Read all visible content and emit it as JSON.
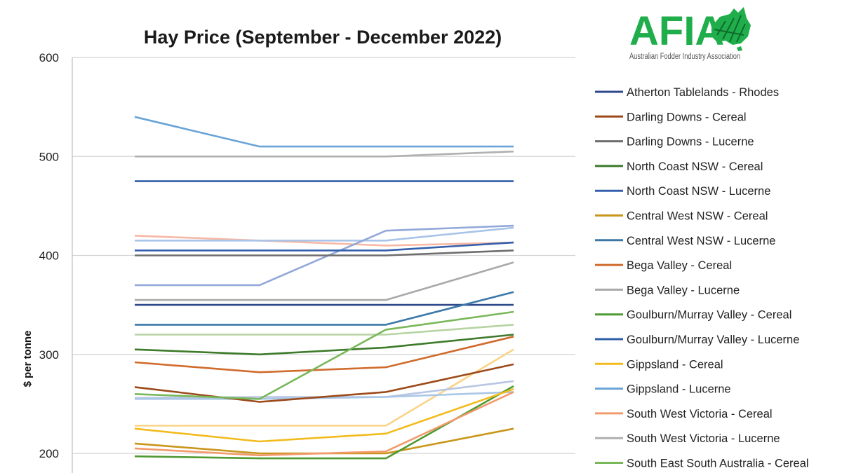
{
  "logo": {
    "word": "AFIA",
    "subtitle": "Australian Fodder Industry Association",
    "color": "#1fae4b"
  },
  "chart_data": {
    "type": "line",
    "title": "Hay Price (September - December 2022)",
    "ylabel": "$ per tonne",
    "xlabel": "",
    "ylim": [
      200,
      600
    ],
    "yticks": [
      200,
      300,
      400,
      500,
      600
    ],
    "grid": true,
    "legend_position": "right",
    "x": [
      1,
      2,
      3,
      4
    ],
    "series": [
      {
        "name": "Atherton Tablelands - Rhodes",
        "color": "#2e4a8c",
        "values": [
          350,
          350,
          350,
          350
        ]
      },
      {
        "name": "Darling Downs - Cereal",
        "color": "#9c4a1a",
        "values": [
          267,
          252,
          262,
          290
        ]
      },
      {
        "name": "Darling Downs - Lucerne",
        "color": "#6e6e6e",
        "values": [
          400,
          400,
          400,
          405
        ]
      },
      {
        "name": "North Coast NSW - Cereal",
        "color": "#3d7a2a",
        "values": [
          305,
          300,
          307,
          320
        ]
      },
      {
        "name": "North Coast NSW - Lucerne",
        "color": "#3560ad",
        "values": [
          405,
          405,
          405,
          413
        ]
      },
      {
        "name": "Central West NSW - Cereal",
        "color": "#c9961a",
        "values": [
          210,
          200,
          200,
          225
        ]
      },
      {
        "name": "Central West NSW - Lucerne",
        "color": "#3b78a8",
        "values": [
          330,
          330,
          330,
          363
        ]
      },
      {
        "name": "Bega Valley - Cereal",
        "color": "#d06b2c",
        "values": [
          292,
          282,
          287,
          318
        ]
      },
      {
        "name": "Bega Valley - Lucerne",
        "color": "#a9a9a9",
        "values": [
          355,
          355,
          355,
          393
        ]
      },
      {
        "name": "Goulburn/Murray Valley - Cereal",
        "color": "#4f9a33",
        "values": [
          197,
          195,
          195,
          268
        ]
      },
      {
        "name": "Goulburn/Murray Valley - Lucerne",
        "color": "#2f5fa8",
        "values": [
          475,
          475,
          475,
          475
        ]
      },
      {
        "name": "Gippsland - Cereal",
        "color": "#f2bb1d",
        "values": [
          225,
          212,
          220,
          265
        ]
      },
      {
        "name": "Gippsland - Lucerne",
        "color": "#6aa3d6",
        "values": [
          540,
          510,
          510,
          510
        ]
      },
      {
        "name": "South West Victoria - Cereal",
        "color": "#f29a6c",
        "values": [
          205,
          198,
          202,
          262
        ]
      },
      {
        "name": "South West Victoria - Lucerne",
        "color": "#b0b0b0",
        "values": [
          500,
          500,
          500,
          505
        ]
      },
      {
        "name": "South East South Australia - Cereal",
        "color": "#79b85a",
        "values": [
          260,
          255,
          325,
          343
        ]
      }
    ],
    "extra_lines": [
      {
        "color": "#f7b9a5",
        "values": [
          420,
          415,
          410,
          413
        ]
      },
      {
        "color": "#a9c4e8",
        "values": [
          415,
          415,
          415,
          428
        ]
      },
      {
        "color": "#92a8d8",
        "values": [
          370,
          370,
          425,
          430
        ]
      },
      {
        "color": "#b6d4a3",
        "values": [
          320,
          320,
          320,
          330
        ]
      },
      {
        "color": "#fad387",
        "values": [
          228,
          228,
          228,
          305
        ]
      },
      {
        "color": "#b9c5e3",
        "values": [
          256,
          257,
          257,
          273
        ]
      },
      {
        "color": "#aac7e6",
        "values": [
          255,
          255,
          257,
          262
        ]
      }
    ]
  }
}
